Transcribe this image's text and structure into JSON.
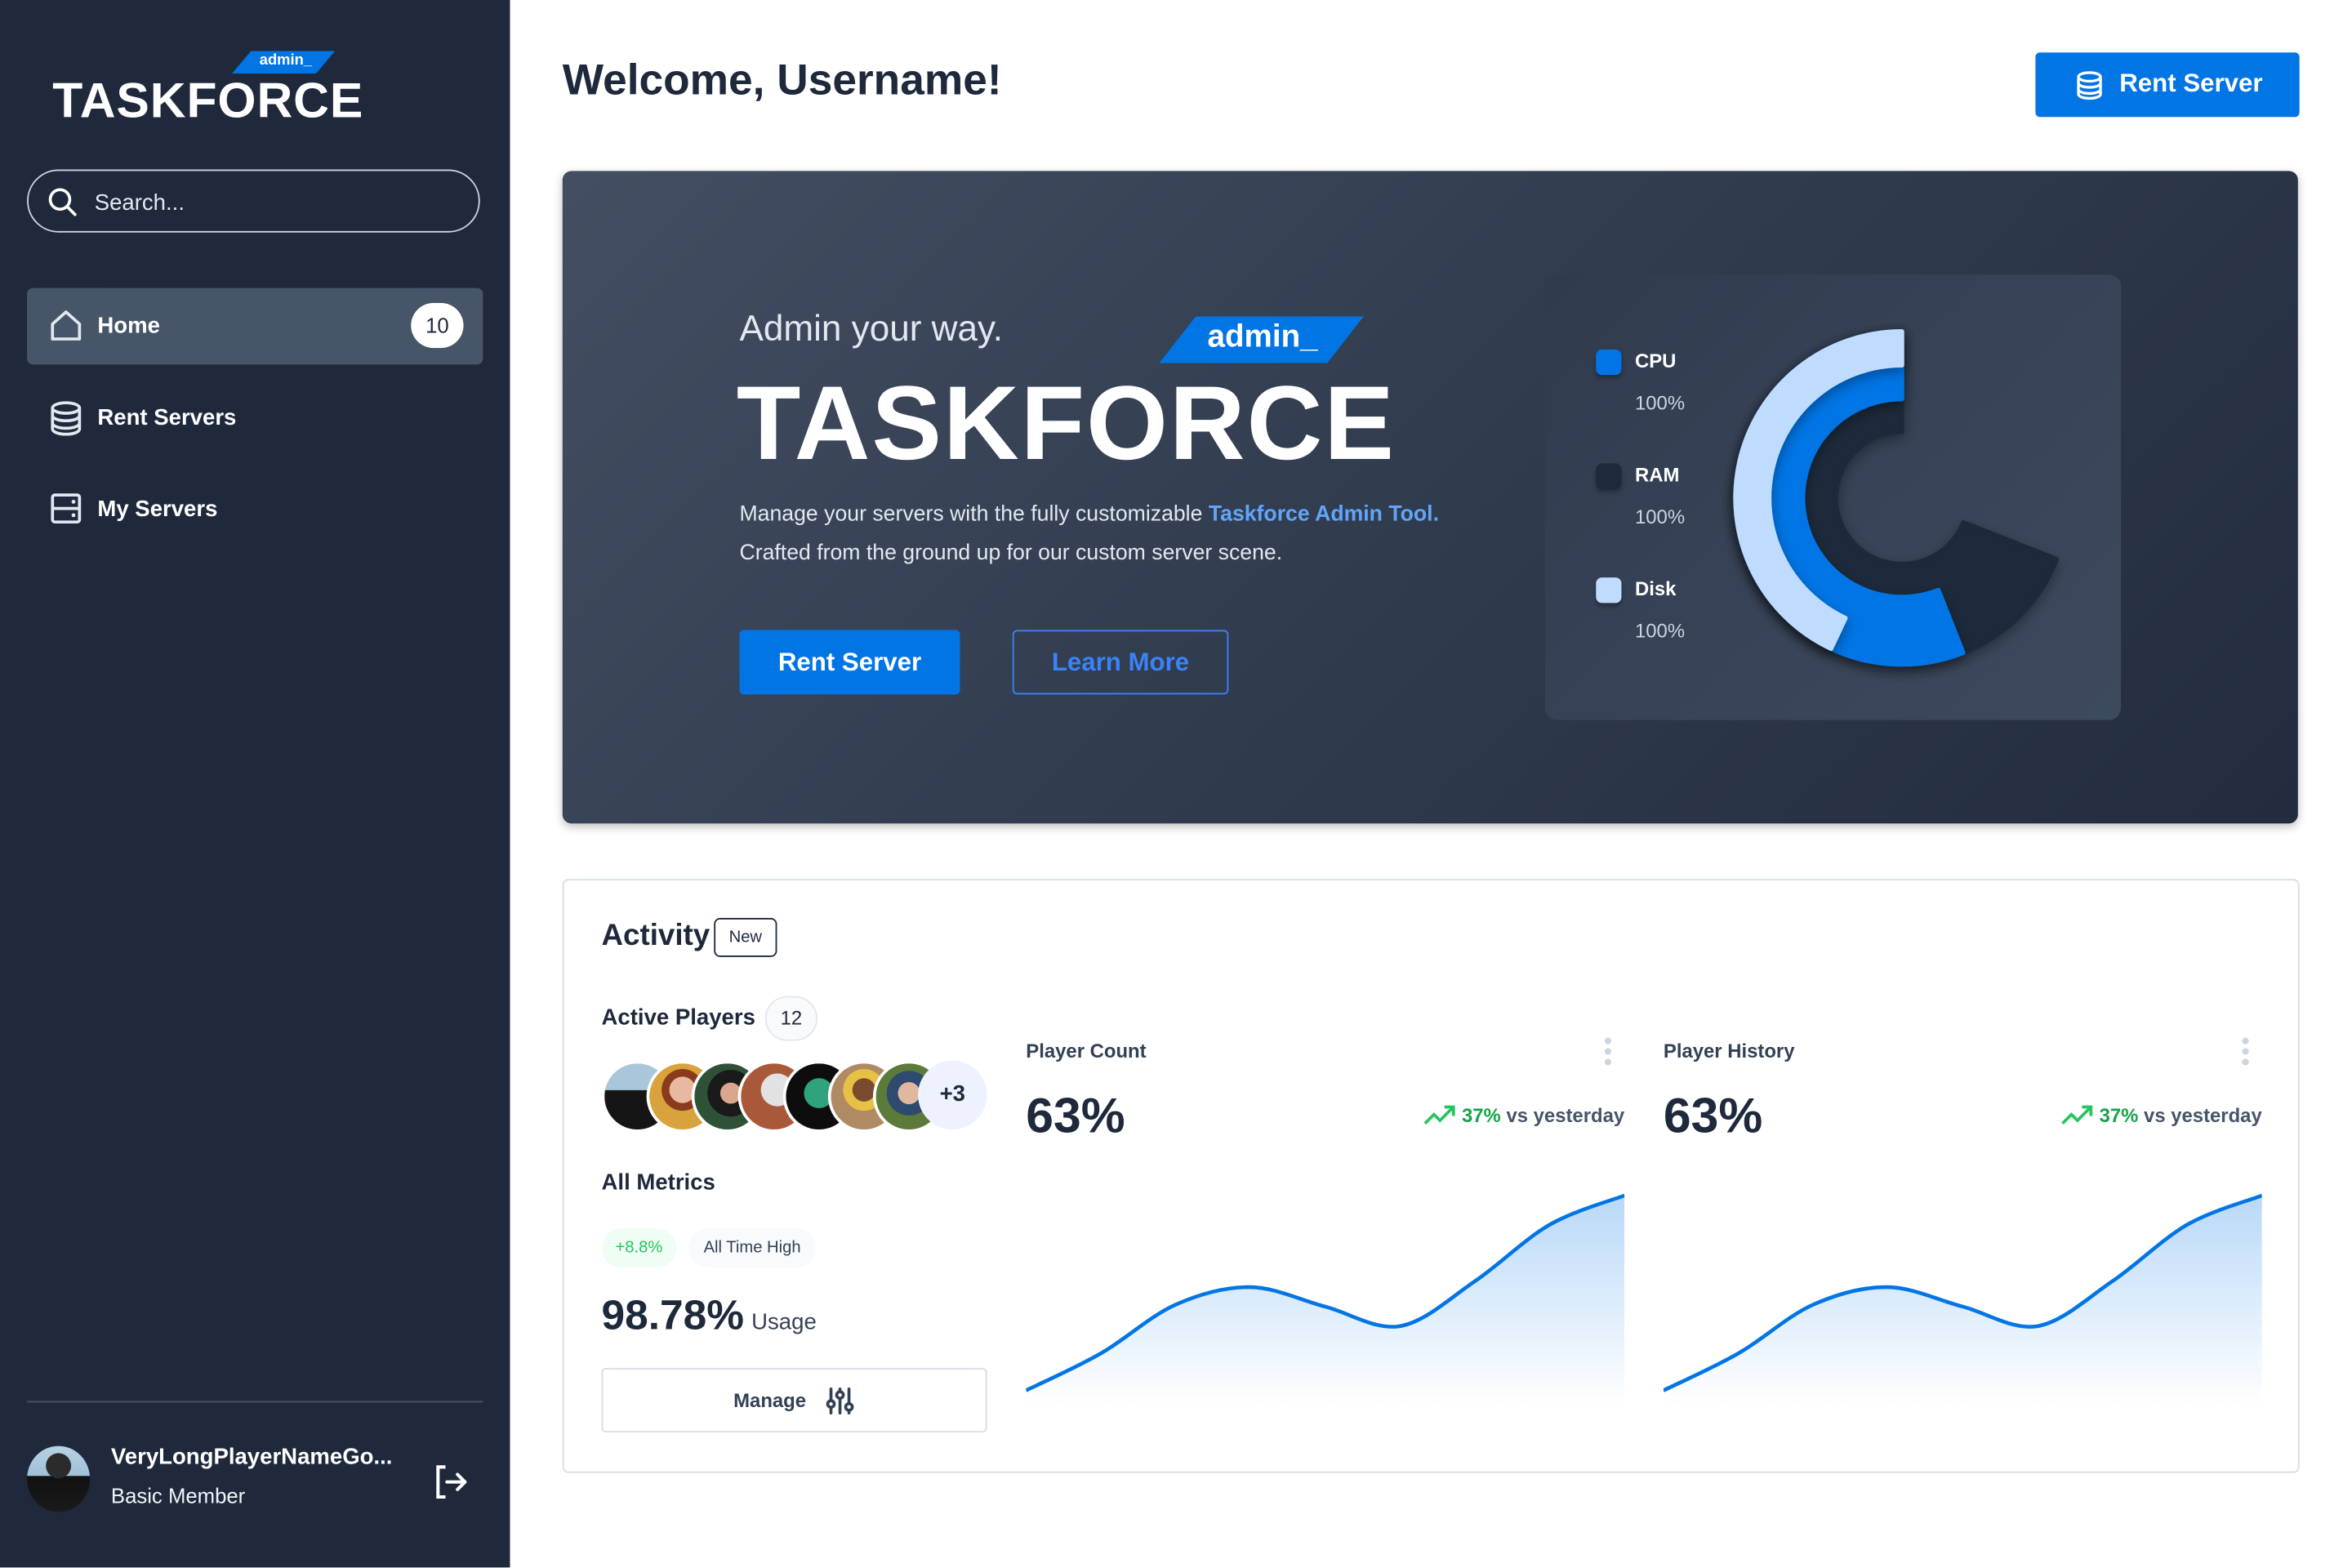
{
  "sidebar": {
    "logo": {
      "word": "TASKFORCE",
      "tag": "admin_"
    },
    "search": {
      "placeholder": "Search..."
    },
    "items": [
      {
        "label": "Home",
        "badge": "10",
        "active": true,
        "icon": "home-icon"
      },
      {
        "label": "Rent Servers",
        "icon": "database-icon"
      },
      {
        "label": "My Servers",
        "icon": "server-icon"
      }
    ],
    "user": {
      "name": "VeryLongPlayerNameGo...",
      "role": "Basic Member"
    }
  },
  "header": {
    "title": "Welcome, Username!",
    "rent_button": "Rent Server"
  },
  "hero": {
    "kicker": "Admin your way.",
    "tag": "admin_",
    "word": "TASKFORCE",
    "desc_1": "Manage your servers with the fully customizable ",
    "desc_highlight": "Taskforce Admin Tool.",
    "desc_2": "Crafted from the ground up for our custom server scene.",
    "primary_button": "Rent Server",
    "secondary_button": "Learn More"
  },
  "resource_chart": {
    "type": "radial-bar",
    "legend": [
      {
        "name": "CPU",
        "value": "100%",
        "color": "#0275e5"
      },
      {
        "name": "RAM",
        "value": "100%",
        "color": "#1e293b"
      },
      {
        "name": "Disk",
        "value": "100%",
        "color": "#bfdbfe"
      }
    ],
    "arc_fractions": {
      "RAM": 0.69,
      "CPU": 0.56,
      "Disk": 0.43
    }
  },
  "activity": {
    "title": "Activity",
    "badge": "New",
    "active_players": {
      "label": "Active Players",
      "count": "12",
      "more": "+3"
    },
    "all_metrics": {
      "label": "All Metrics",
      "change": "+8.8%",
      "note": "All Time High",
      "value": "98.78%",
      "unit": "Usage"
    },
    "manage_button": "Manage"
  },
  "chart_data": [
    {
      "type": "area",
      "title": "Player Count",
      "value": "63%",
      "delta": "37%",
      "delta_label": "vs yesterday",
      "values": [
        0,
        19,
        44,
        53,
        43,
        33,
        56,
        85,
        100
      ],
      "color": "#0275e5"
    },
    {
      "type": "area",
      "title": "Player History",
      "value": "63%",
      "delta": "37%",
      "delta_label": "vs yesterday",
      "values": [
        0,
        19,
        44,
        53,
        43,
        33,
        56,
        85,
        100
      ],
      "color": "#0275e5"
    }
  ],
  "colors": {
    "accent": "#0275e5",
    "sidebar": "#1f293b",
    "success": "#22c55e"
  }
}
